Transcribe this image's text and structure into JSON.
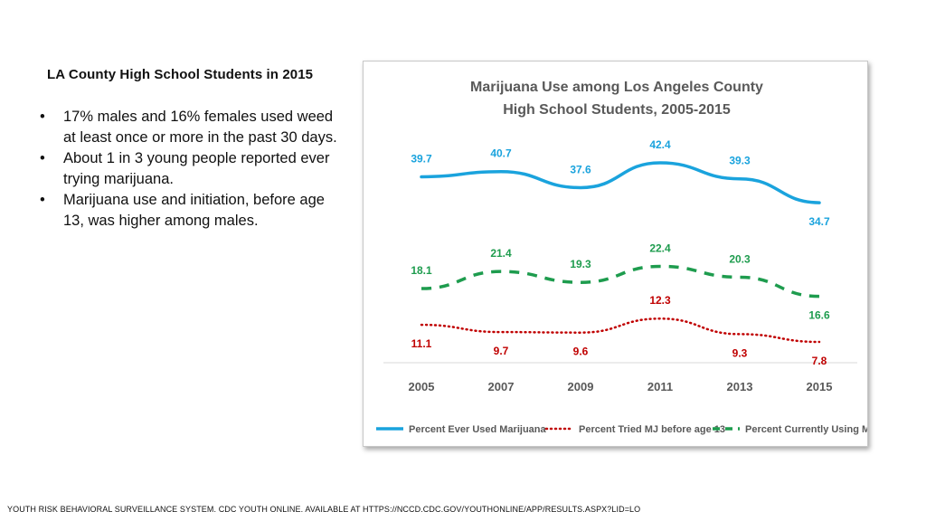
{
  "slide": {
    "heading": "LA County High School Students in 2015",
    "bullets": [
      "17% males and 16% females used weed at least once or more in the past 30 days.",
      "About 1 in 3 young people reported ever trying marijuana.",
      "Marijuana use and initiation, before age 13, was higher among males."
    ],
    "footer": "YOUTH RISK BEHAVIORAL SURVEILLANCE SYSTEM. CDC YOUTH ONLINE. AVAILABLE AT HTTPS://NCCD.CDC.GOV/YOUTHONLINE/APP/RESULTS.ASPX?LID=LO"
  },
  "chart_data": {
    "type": "line",
    "title": [
      "Marijuana Use among Los Angeles County",
      "High School Students, 2005-2015"
    ],
    "categories": [
      "2005",
      "2007",
      "2009",
      "2011",
      "2013",
      "2015"
    ],
    "series": [
      {
        "name": "Percent Ever Used Marijuana",
        "values": [
          39.7,
          40.7,
          37.6,
          42.4,
          39.3,
          34.7
        ],
        "color": "#1aa3dd",
        "style": "solid"
      },
      {
        "name": "Percent Tried MJ before age 13",
        "values": [
          11.1,
          9.7,
          9.6,
          12.3,
          9.3,
          7.8
        ],
        "color": "#c00000",
        "style": "dotted"
      },
      {
        "name": "Percent Currently Using MJ",
        "values": [
          18.1,
          21.4,
          19.3,
          22.4,
          20.3,
          16.6
        ],
        "color": "#1e9c4e",
        "style": "dashed"
      }
    ],
    "xlabel": "",
    "ylabel": "",
    "grid": false,
    "legend": "bottom"
  }
}
